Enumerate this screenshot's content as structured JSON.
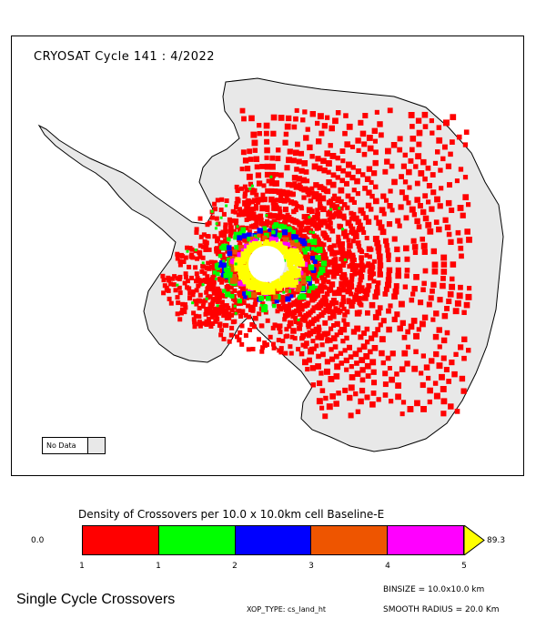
{
  "map": {
    "title": "CRYOSAT Cycle 141 : 4/2022",
    "nodata_label": "No Data",
    "colors": {
      "land": "#e8e8e8",
      "coast": "#000000",
      "c1": "#ff0000",
      "c2": "#00ff00",
      "c3": "#0000ff",
      "c4": "#ee5500",
      "c5": "#ff00ff",
      "c6": "#ffff00"
    }
  },
  "legend": {
    "title": "Density of Crossovers per  10.0 x  10.0km cell Baseline-E",
    "min_label": "0.0",
    "max_label": "89.3",
    "segments": [
      "#ff0000",
      "#00ff00",
      "#0000ff",
      "#ee5500",
      "#ff00ff"
    ],
    "overflow_color": "#ffff00",
    "ticks": [
      "1",
      "1",
      "2",
      "3",
      "4",
      "5"
    ]
  },
  "footer": {
    "title": "Single Cycle Crossovers",
    "binsize": "BINSIZE = 10.0x10.0 km",
    "xop_type": "XOP_TYPE: cs_land_ht",
    "smooth_radius": "SMOOTH RADIUS =  20.0 Km"
  }
}
